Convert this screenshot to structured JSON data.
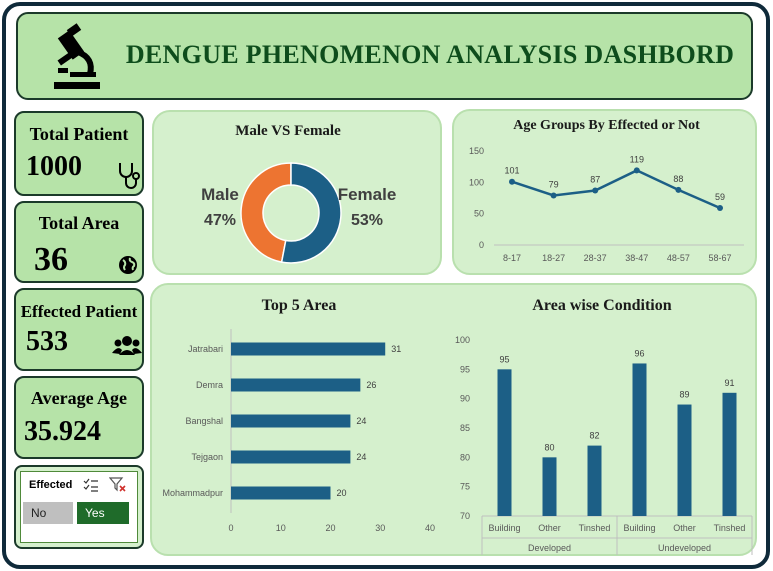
{
  "header": {
    "title": "DENGUE PHENOMENON ANALYSIS DASHBORD",
    "icon": "microscope-icon"
  },
  "kpis": [
    {
      "label": "Total Patient",
      "value": "1000",
      "icon": "stethoscope-icon"
    },
    {
      "label": "Total Area",
      "value": "36",
      "icon": "globe-icon"
    },
    {
      "label": "Effected Patient",
      "value": "533",
      "icon": "people-icon"
    },
    {
      "label": "Average Age",
      "value": "35.924",
      "icon": ""
    }
  ],
  "slicer": {
    "title": "Effected",
    "options": [
      {
        "label": "No",
        "selected": false
      },
      {
        "label": "Yes",
        "selected": true
      }
    ],
    "colors": {
      "selected": "#1f6b2a",
      "unselected": "#bfbfbf"
    }
  },
  "chart_data": [
    {
      "type": "pie",
      "title": "Male VS Female",
      "categories": [
        "Male",
        "Female"
      ],
      "values": [
        47,
        53
      ],
      "labels": [
        "47%",
        "53%"
      ],
      "colors": [
        "#ed7431",
        "#1c5f86"
      ],
      "donut": true
    },
    {
      "type": "line",
      "title": "Age Groups By Effected or Not",
      "categories": [
        "8-17",
        "18-27",
        "28-37",
        "38-47",
        "48-57",
        "58-67"
      ],
      "values": [
        101,
        79,
        87,
        119,
        88,
        59
      ],
      "yticks": [
        "0",
        "50",
        "100",
        "150"
      ],
      "ylim": [
        0,
        150
      ],
      "grid": false,
      "color": "#1c5f86"
    },
    {
      "type": "bar",
      "orientation": "horizontal",
      "title": "Top 5 Area",
      "categories": [
        "Jatrabari",
        "Demra",
        "Bangshal",
        "Tejgaon",
        "Mohammadpur"
      ],
      "values": [
        31,
        26,
        24,
        24,
        20
      ],
      "xticks": [
        "0",
        "10",
        "20",
        "30",
        "40"
      ],
      "xlim": [
        0,
        40
      ],
      "color": "#1c5f86"
    },
    {
      "type": "bar",
      "title": "Area wise Condition",
      "groups": [
        {
          "name": "Developed",
          "categories": [
            "Building",
            "Other",
            "Tinshed"
          ],
          "values": [
            95,
            80,
            82
          ]
        },
        {
          "name": "Undeveloped",
          "categories": [
            "Building",
            "Other",
            "Tinshed"
          ],
          "values": [
            96,
            89,
            91
          ]
        }
      ],
      "yticks": [
        "70",
        "75",
        "80",
        "85",
        "90",
        "95",
        "100"
      ],
      "ylim": [
        70,
        100
      ],
      "color": "#1c5f86"
    }
  ]
}
